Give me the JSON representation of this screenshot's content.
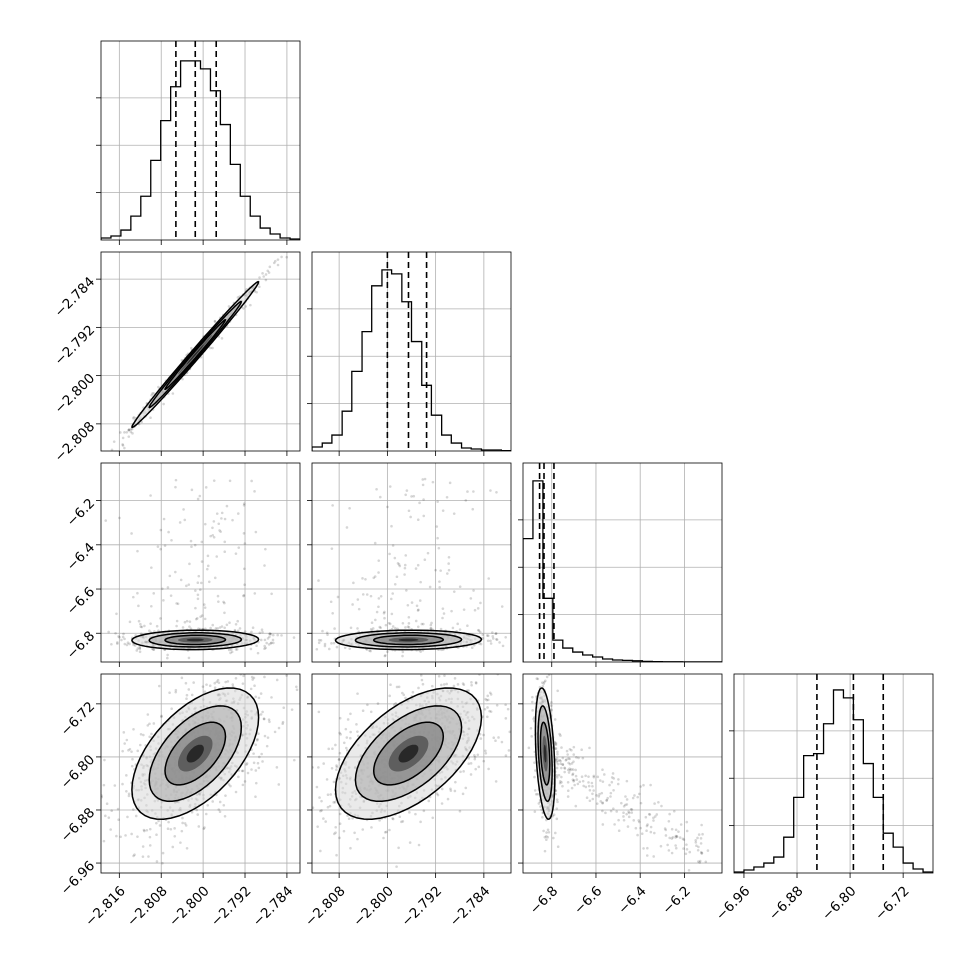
{
  "chart_data": {
    "type": "corner",
    "parameters": [
      {
        "range": [
          -2.8195,
          -2.7815
        ],
        "ticks": [
          -2.816,
          -2.808,
          -2.8,
          -2.792,
          -2.784
        ],
        "tick_labels": [
          "−2.816",
          "−2.808",
          "−2.800",
          "−2.792",
          "−2.784"
        ],
        "quantiles": [
          -2.8052,
          -2.8015,
          -2.7975
        ]
      },
      {
        "range": [
          -2.8125,
          -2.7795
        ],
        "ticks": [
          -2.808,
          -2.8,
          -2.792,
          -2.784
        ],
        "tick_labels": [
          "−2.808",
          "−2.800",
          "−2.792",
          "−2.784"
        ],
        "quantiles": [
          -2.8,
          -2.7965,
          -2.7935
        ]
      },
      {
        "range": [
          -6.93,
          -6.03
        ],
        "ticks": [
          -6.8,
          -6.6,
          -6.4,
          -6.2
        ],
        "tick_labels": [
          "−6.8",
          "−6.6",
          "−6.4",
          "−6.2"
        ],
        "quantiles": [
          -6.855,
          -6.835,
          -6.79
        ]
      },
      {
        "range": [
          -6.975,
          -6.675
        ],
        "ticks": [
          -6.96,
          -6.88,
          -6.8,
          -6.72
        ],
        "tick_labels": [
          "−6.96",
          "−6.88",
          "−6.80",
          "−6.72"
        ],
        "quantiles": [
          -6.85,
          -6.795,
          -6.75
        ]
      }
    ],
    "histograms": [
      {
        "edges": [
          -2.8195,
          -2.8176,
          -2.8157,
          -2.8138,
          -2.8119,
          -2.81,
          -2.8081,
          -2.8062,
          -2.8043,
          -2.8024,
          -2.8005,
          -2.7986,
          -2.7967,
          -2.7948,
          -2.7929,
          -2.791,
          -2.7891,
          -2.7872,
          -2.7853,
          -2.7834,
          -2.7815
        ],
        "counts": [
          1,
          2,
          5,
          12,
          22,
          40,
          60,
          77,
          90,
          90,
          86,
          75,
          58,
          38,
          22,
          12,
          6,
          3,
          1,
          0.5
        ],
        "ymax": 100
      },
      {
        "edges": [
          -2.8125,
          -2.8108,
          -2.8092,
          -2.8075,
          -2.8059,
          -2.8042,
          -2.8026,
          -2.8009,
          -2.7993,
          -2.7976,
          -2.796,
          -2.7943,
          -2.7927,
          -2.791,
          -2.7894,
          -2.7877,
          -2.7861,
          -2.7844,
          -2.7828,
          -2.7811,
          -2.7795
        ],
        "counts": [
          2,
          4,
          8,
          20,
          40,
          60,
          83,
          91,
          89,
          75,
          55,
          33,
          18,
          8,
          4,
          1.5,
          1,
          0.5,
          0.5,
          0.2
        ],
        "ymax": 100
      },
      {
        "edges": [
          -6.93,
          -6.885,
          -6.84,
          -6.795,
          -6.75,
          -6.705,
          -6.66,
          -6.615,
          -6.57,
          -6.525,
          -6.48,
          -6.435,
          -6.39,
          -6.345,
          -6.3,
          -6.255,
          -6.21,
          -6.165,
          -6.12,
          -6.075,
          -6.03
        ],
        "counts": [
          62,
          91,
          32,
          11,
          7,
          5,
          3.5,
          2.5,
          1.5,
          1,
          0.8,
          0.6,
          0.3,
          0.2,
          0.1,
          0.1,
          0.05,
          0.05,
          0.03,
          0.02
        ],
        "ymax": 100
      },
      {
        "edges": [
          -6.975,
          -6.96,
          -6.945,
          -6.93,
          -6.915,
          -6.9,
          -6.885,
          -6.87,
          -6.855,
          -6.84,
          -6.825,
          -6.81,
          -6.795,
          -6.78,
          -6.765,
          -6.75,
          -6.735,
          -6.72,
          -6.705,
          -6.69,
          -6.675
        ],
        "counts": [
          0.5,
          1.5,
          3,
          5,
          8,
          18,
          38,
          59,
          60,
          75,
          92,
          88,
          77,
          55,
          38,
          20,
          13,
          5,
          2,
          0.5
        ],
        "ymax": 100
      }
    ],
    "pairs": [
      {
        "row": 1,
        "col": 0,
        "mean": [
          -2.8015,
          -2.7965
        ],
        "sd": [
          0.0055,
          0.0055
        ],
        "rho": 0.995,
        "n": 500
      },
      {
        "row": 2,
        "col": 0,
        "mean": [
          -2.8015,
          -6.83
        ],
        "sd": [
          0.0055,
          0.02
        ],
        "rho": 0.05,
        "n": 600
      },
      {
        "row": 2,
        "col": 1,
        "mean": [
          -2.7965,
          -6.83
        ],
        "sd": [
          0.0055,
          0.02
        ],
        "rho": 0.05,
        "n": 600
      },
      {
        "row": 3,
        "col": 0,
        "mean": [
          -2.8015,
          -6.795
        ],
        "sd": [
          0.0055,
          0.045
        ],
        "rho": 0.55,
        "n": 900
      },
      {
        "row": 3,
        "col": 1,
        "mean": [
          -2.7965,
          -6.795
        ],
        "sd": [
          0.0055,
          0.045
        ],
        "rho": 0.55,
        "n": 900
      },
      {
        "row": 3,
        "col": 2,
        "mean": [
          -6.83,
          -6.795
        ],
        "sd": [
          0.02,
          0.045
        ],
        "rho": -0.35,
        "n": 700
      }
    ],
    "colors": {
      "line": "#000000",
      "grid": "#b0b0b0",
      "points": "#000000"
    },
    "grid": true
  }
}
